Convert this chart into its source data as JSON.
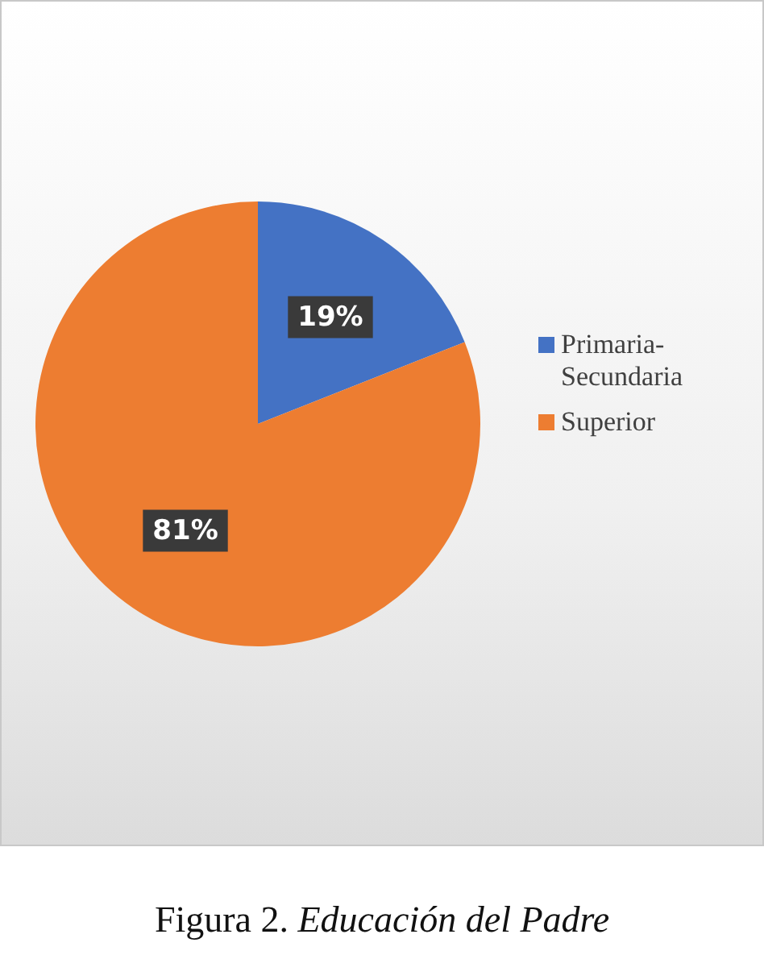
{
  "chart_data": {
    "type": "pie",
    "categories": [
      "Primaria-Secundaria",
      "Superior"
    ],
    "values": [
      19,
      81
    ],
    "colors": [
      "#4472c4",
      "#ed7d31"
    ],
    "value_labels": [
      "19%",
      "81%"
    ],
    "legend": "right",
    "annotations": [
      "Figura 2.",
      "Educación del Padre"
    ]
  }
}
